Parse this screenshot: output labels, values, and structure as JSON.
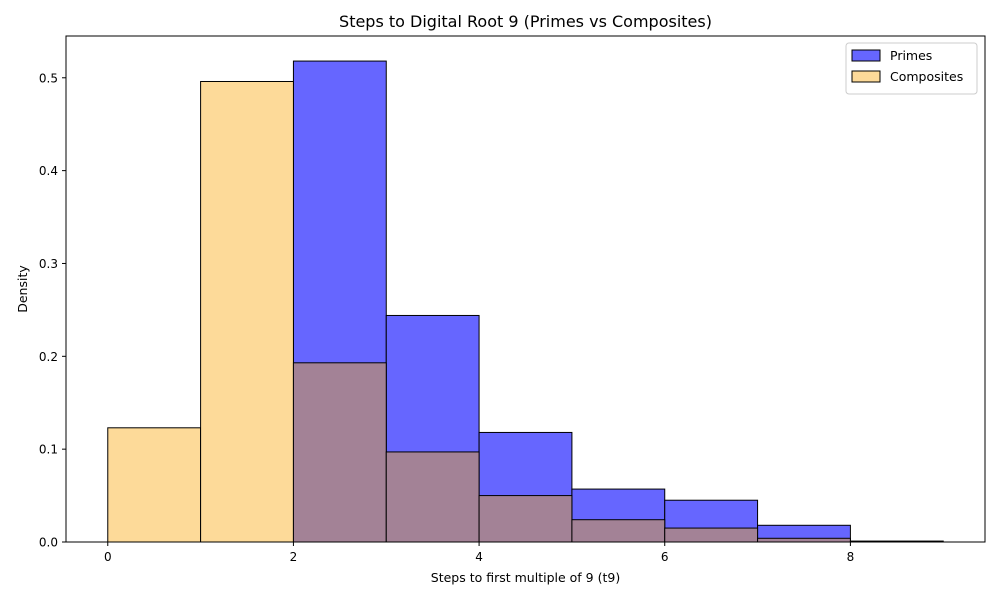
{
  "chart_data": {
    "type": "bar",
    "title": "Steps to Digital Root 9 (Primes vs Composites)",
    "xlabel": "Steps to first multiple of 9 (t9)",
    "ylabel": "Density",
    "xlim": [
      -0.45,
      9.45
    ],
    "ylim": [
      0,
      0.545
    ],
    "xticks": [
      0,
      2,
      4,
      6,
      8
    ],
    "yticks": [
      0.0,
      0.1,
      0.2,
      0.3,
      0.4,
      0.5
    ],
    "ytick_labels": [
      "0.0",
      "0.1",
      "0.2",
      "0.3",
      "0.4",
      "0.5"
    ],
    "bin_edges": [
      0,
      1,
      2,
      3,
      4,
      5,
      6,
      7,
      8,
      9
    ],
    "grid": false,
    "legend_position": "top-right",
    "series": [
      {
        "name": "Primes",
        "color": "#6666ff",
        "values": [
          0,
          0,
          0.518,
          0.244,
          0.118,
          0.057,
          0.045,
          0.018,
          0
        ]
      },
      {
        "name": "Composites",
        "color": "#fdda99",
        "values": [
          0.123,
          0.496,
          0.193,
          0.097,
          0.05,
          0.024,
          0.015,
          0.004,
          0.001
        ]
      }
    ],
    "overlap_color": "#a38296"
  }
}
